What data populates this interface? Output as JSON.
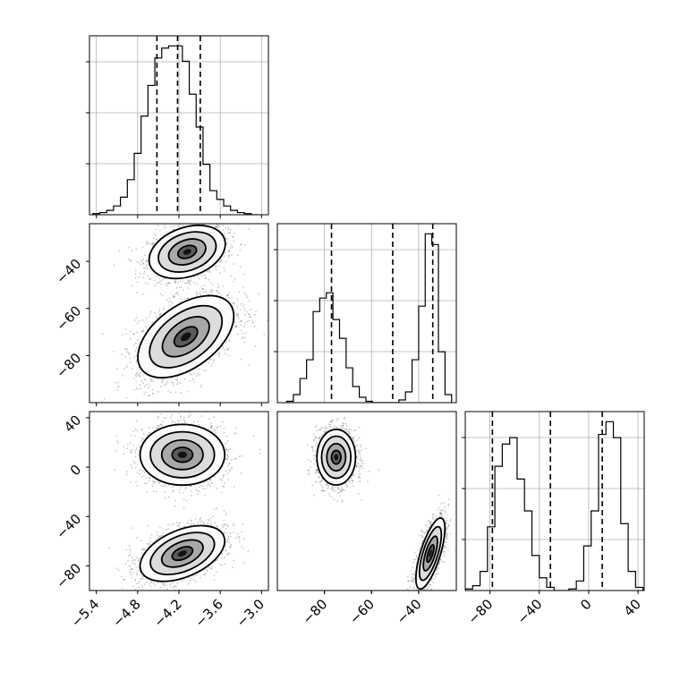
{
  "chart_data": {
    "type": "corner",
    "variables": [
      {
        "range": [
          -5.5,
          -2.9
        ],
        "ticks": [
          -5.4,
          -4.8,
          -4.2,
          -3.6,
          -3.0
        ],
        "tick_labels": [
          "−5.4",
          "−4.8",
          "−4.2",
          "−3.6",
          "−3.0"
        ],
        "quantiles": [
          -4.52,
          -4.22,
          -3.89
        ]
      },
      {
        "range": [
          -100,
          -24
        ],
        "ticks": [
          -80,
          -60,
          -40
        ],
        "tick_labels": [
          "−80",
          "−60",
          "−40"
        ],
        "quantiles": [
          -77,
          -51,
          -34
        ]
      },
      {
        "range": [
          -100,
          45
        ],
        "ticks": [
          -80,
          -40,
          0,
          40
        ],
        "tick_labels": [
          "−80",
          "−40",
          "0",
          "40"
        ],
        "quantiles": [
          -78,
          -31,
          11
        ]
      }
    ],
    "histograms": [
      {
        "bin_edges": [
          -5.45,
          -5.35,
          -5.25,
          -5.15,
          -5.05,
          -4.95,
          -4.85,
          -4.75,
          -4.65,
          -4.55,
          -4.45,
          -4.35,
          -4.25,
          -4.15,
          -4.05,
          -3.95,
          -3.85,
          -3.75,
          -3.65,
          -3.55,
          -3.45,
          -3.35,
          -3.25,
          -3.15,
          -3.05
        ],
        "counts": [
          1,
          2,
          4,
          8,
          16,
          32,
          56,
          90,
          118,
          143,
          152,
          154,
          154,
          140,
          110,
          80,
          46,
          22,
          14,
          8,
          4,
          2,
          1,
          0
        ]
      },
      {
        "bin_edges": [
          -96,
          -93.2,
          -90.4,
          -87.6,
          -84.8,
          -82,
          -79.2,
          -76.4,
          -73.6,
          -70.8,
          -68,
          -65.2,
          -62.4,
          -59.6,
          -56.8,
          -54,
          -51.2,
          -48.4,
          -45.6,
          -42.8,
          -40,
          -37.2,
          -34.4,
          -31.6,
          -28.8,
          -26
        ],
        "counts": [
          1,
          6,
          18,
          32,
          68,
          78,
          82,
          62,
          48,
          26,
          12,
          4,
          1,
          0,
          0,
          0,
          0,
          2,
          8,
          32,
          72,
          126,
          118,
          38,
          6
        ]
      },
      {
        "bin_edges": [
          -100,
          -94,
          -88,
          -82,
          -76,
          -70,
          -64,
          -58,
          -52,
          -46,
          -40,
          -34,
          -28,
          -22,
          -16,
          -10,
          -4,
          2,
          8,
          14,
          20,
          26,
          32,
          38,
          44
        ],
        "counts": [
          1,
          3,
          12,
          40,
          78,
          92,
          96,
          70,
          50,
          22,
          8,
          2,
          0,
          0,
          1,
          6,
          28,
          50,
          98,
          106,
          96,
          42,
          12,
          2
        ]
      }
    ],
    "scatter_2d": [
      {
        "x_var": 0,
        "y_var": 1,
        "clusters": [
          {
            "cx": -4.08,
            "cy": -36,
            "sx": 0.27,
            "sy": 5.5,
            "rho": 0.3,
            "n": 1500
          },
          {
            "cx": -4.1,
            "cy": -72,
            "sx": 0.34,
            "sy": 8.5,
            "rho": 0.5,
            "n": 2200
          }
        ]
      },
      {
        "x_var": 0,
        "y_var": 2,
        "clusters": [
          {
            "cx": -4.15,
            "cy": 10,
            "sx": 0.3,
            "sy": 12,
            "rho": 0.0,
            "n": 1800
          },
          {
            "cx": -4.15,
            "cy": -70,
            "sx": 0.3,
            "sy": 11,
            "rho": 0.45,
            "n": 1800
          }
        ]
      },
      {
        "x_var": 1,
        "y_var": 2,
        "clusters": [
          {
            "cx": -75,
            "cy": 8,
            "sx": 4,
            "sy": 11,
            "rho": 0.0,
            "n": 1700
          },
          {
            "cx": -35,
            "cy": -70,
            "sx": 3,
            "sy": 14,
            "rho": 0.7,
            "n": 1700
          }
        ]
      }
    ]
  }
}
